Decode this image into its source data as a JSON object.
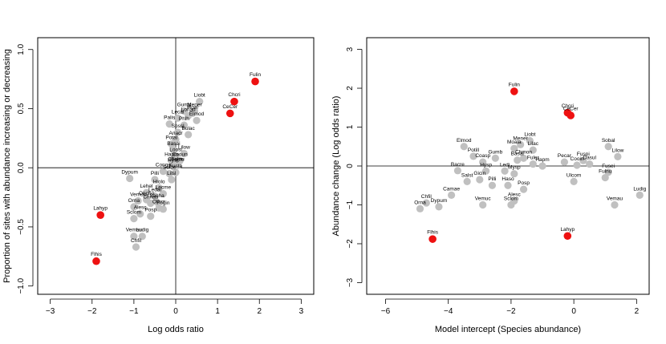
{
  "chart_data": [
    {
      "type": "scatter",
      "xlabel": "Log odds ratio",
      "ylabel": "Proportion of sites with abundance increasing or decreasing",
      "xlim": [
        -3.3,
        3.3
      ],
      "ylim": [
        -1.07,
        1.1
      ],
      "xticks": [
        -3,
        -2,
        -1,
        0,
        1,
        2,
        3
      ],
      "yticks": [
        -1.0,
        -0.5,
        0.0,
        0.5,
        1.0
      ],
      "ytick_labels": [
        "-1.0",
        "-0.5",
        "0.0",
        "0.5",
        "1.0"
      ],
      "reference_lines": {
        "x": 0,
        "y": 0
      },
      "colors": {
        "highlight": "#ee1111",
        "other": "#c0c0c0"
      },
      "highlighted": [
        {
          "label": "Fulin",
          "x": 1.9,
          "y": 0.73
        },
        {
          "label": "Chcri",
          "x": 1.4,
          "y": 0.56
        },
        {
          "label": "CeCer",
          "x": 1.3,
          "y": 0.46
        },
        {
          "label": "Lahyp",
          "x": -1.8,
          "y": -0.4
        },
        {
          "label": "Flhis",
          "x": -1.9,
          "y": -0.79
        }
      ],
      "points": [
        {
          "label": "Liobt",
          "x": 0.57,
          "y": 0.56
        },
        {
          "label": "Gump",
          "x": 0.2,
          "y": 0.48
        },
        {
          "label": "Mener",
          "x": 0.45,
          "y": 0.48
        },
        {
          "label": "Lonad",
          "x": 0.3,
          "y": 0.44
        },
        {
          "label": "Moal",
          "x": 0.4,
          "y": 0.46
        },
        {
          "label": "Elmod",
          "x": 0.5,
          "y": 0.4
        },
        {
          "label": "Lecal",
          "x": 0.05,
          "y": 0.42
        },
        {
          "label": "Palis",
          "x": -0.15,
          "y": 0.37
        },
        {
          "label": "Phlh",
          "x": 0.2,
          "y": 0.36
        },
        {
          "label": "Bulac",
          "x": 0.3,
          "y": 0.28
        },
        {
          "label": "Spssl",
          "x": 0.05,
          "y": 0.3
        },
        {
          "label": "Anacr",
          "x": 0.0,
          "y": 0.24
        },
        {
          "label": "Potal",
          "x": -0.1,
          "y": 0.2
        },
        {
          "label": "Basai",
          "x": -0.05,
          "y": 0.15
        },
        {
          "label": "Lilow",
          "x": 0.2,
          "y": 0.12
        },
        {
          "label": "Loosl",
          "x": 0.0,
          "y": 0.1
        },
        {
          "label": "Hapm",
          "x": -0.1,
          "y": 0.06
        },
        {
          "label": "Cooun",
          "x": 0.1,
          "y": 0.06
        },
        {
          "label": "Hysp",
          "x": -0.05,
          "y": 0.01
        },
        {
          "label": "Coarm",
          "x": 0.0,
          "y": 0.02
        },
        {
          "label": "Fulnu",
          "x": 0.05,
          "y": 0.02
        },
        {
          "label": "Dypum",
          "x": -1.1,
          "y": -0.09
        },
        {
          "label": "Conge",
          "x": -0.3,
          "y": -0.03
        },
        {
          "label": "Solbe",
          "x": -0.15,
          "y": -0.05
        },
        {
          "label": "Fusta",
          "x": 0.0,
          "y": -0.04
        },
        {
          "label": "Pilli",
          "x": -0.5,
          "y": -0.1
        },
        {
          "label": "Lilsl",
          "x": -0.1,
          "y": -0.1
        },
        {
          "label": "Hiolo",
          "x": -0.4,
          "y": -0.17
        },
        {
          "label": "Lehel",
          "x": -0.7,
          "y": -0.21
        },
        {
          "label": "Ledai",
          "x": -0.5,
          "y": -0.24
        },
        {
          "label": "Lecme",
          "x": -0.3,
          "y": -0.22
        },
        {
          "label": "Oncho",
          "x": -0.7,
          "y": -0.27
        },
        {
          "label": "Vemuc",
          "x": -0.9,
          "y": -0.28
        },
        {
          "label": "Chnas",
          "x": -0.6,
          "y": -0.3
        },
        {
          "label": "Sasha",
          "x": -0.45,
          "y": -0.29
        },
        {
          "label": "Orna",
          "x": -1.0,
          "y": -0.33
        },
        {
          "label": "Ollsm",
          "x": -0.4,
          "y": -0.34
        },
        {
          "label": "Fogin",
          "x": -0.3,
          "y": -0.35
        },
        {
          "label": "Alesc",
          "x": -0.85,
          "y": -0.39
        },
        {
          "label": "Posp",
          "x": -0.6,
          "y": -0.41
        },
        {
          "label": "Sclom",
          "x": -1.0,
          "y": -0.43
        },
        {
          "label": "Vemau",
          "x": -1.0,
          "y": -0.58
        },
        {
          "label": "Ludig",
          "x": -0.8,
          "y": -0.58
        },
        {
          "label": "Chfil",
          "x": -0.95,
          "y": -0.67
        }
      ]
    },
    {
      "type": "scatter",
      "xlabel": "Model intercept (Species abundance)",
      "ylabel": "Abundance change (Log odds ratio)",
      "xlim": [
        -6.6,
        2.4
      ],
      "ylim": [
        -3.3,
        3.3
      ],
      "xticks": [
        -6,
        -4,
        -2,
        0,
        2
      ],
      "yticks": [
        -3,
        -2,
        -1,
        0,
        1,
        2,
        3
      ],
      "ytick_labels": [
        "-3",
        "-2",
        "-1",
        "0",
        "1",
        "2",
        "3"
      ],
      "reference_lines": {
        "y": 0
      },
      "colors": {
        "highlight": "#ee1111",
        "other": "#c0c0c0"
      },
      "highlighted": [
        {
          "label": "Fulin",
          "x": -1.9,
          "y": 1.92
        },
        {
          "label": "Chcri",
          "x": -0.2,
          "y": 1.37
        },
        {
          "label": "CeCer",
          "x": -0.1,
          "y": 1.3
        },
        {
          "label": "Lahyp",
          "x": -0.2,
          "y": -1.8
        },
        {
          "label": "Flhis",
          "x": -4.5,
          "y": -1.88
        }
      ],
      "points": [
        {
          "label": "Liobt",
          "x": -1.4,
          "y": 0.65
        },
        {
          "label": "Mener",
          "x": -1.7,
          "y": 0.55
        },
        {
          "label": "Elmod",
          "x": -3.5,
          "y": 0.5
        },
        {
          "label": "Moala",
          "x": -1.9,
          "y": 0.45
        },
        {
          "label": "Lilac",
          "x": -1.3,
          "y": 0.41
        },
        {
          "label": "Sobal",
          "x": 1.1,
          "y": 0.5
        },
        {
          "label": "Lilow",
          "x": 1.4,
          "y": 0.24
        },
        {
          "label": "Potill",
          "x": -3.2,
          "y": 0.25
        },
        {
          "label": "Gumb",
          "x": -2.5,
          "y": 0.2
        },
        {
          "label": "Chmon",
          "x": -1.6,
          "y": 0.2
        },
        {
          "label": "Basai",
          "x": -1.8,
          "y": 0.15
        },
        {
          "label": "Coasp",
          "x": -2.9,
          "y": 0.1
        },
        {
          "label": "Fuspi",
          "x": 0.3,
          "y": 0.14
        },
        {
          "label": "Pecar",
          "x": -0.3,
          "y": 0.1
        },
        {
          "label": "Dasul",
          "x": 0.5,
          "y": 0.05
        },
        {
          "label": "Cooin",
          "x": 0.1,
          "y": 0.02
        },
        {
          "label": "Fuler",
          "x": -1.3,
          "y": 0.05
        },
        {
          "label": "Hapm",
          "x": -1.0,
          "y": 0.0
        },
        {
          "label": "Bacre",
          "x": -3.7,
          "y": -0.12
        },
        {
          "label": "Hysp",
          "x": -2.8,
          "y": -0.13
        },
        {
          "label": "Ledi",
          "x": -2.2,
          "y": -0.13
        },
        {
          "label": "Mysp",
          "x": -1.9,
          "y": -0.2
        },
        {
          "label": "Fusei",
          "x": 1.1,
          "y": -0.16
        },
        {
          "label": "Fulnu",
          "x": 1.0,
          "y": -0.3
        },
        {
          "label": "Ulcom",
          "x": 0.0,
          "y": -0.4
        },
        {
          "label": "Gicin",
          "x": -3.0,
          "y": -0.35
        },
        {
          "label": "Salst",
          "x": -3.4,
          "y": -0.4
        },
        {
          "label": "Pilli",
          "x": -2.6,
          "y": -0.5
        },
        {
          "label": "Haso",
          "x": -2.1,
          "y": -0.5
        },
        {
          "label": "Posp",
          "x": -1.6,
          "y": -0.6
        },
        {
          "label": "Camae",
          "x": -3.9,
          "y": -0.75
        },
        {
          "label": "Chfil",
          "x": -4.7,
          "y": -0.95
        },
        {
          "label": "Dypum",
          "x": -4.3,
          "y": -1.05
        },
        {
          "label": "Orna",
          "x": -4.9,
          "y": -1.1
        },
        {
          "label": "Vemuc",
          "x": -2.9,
          "y": -1.0
        },
        {
          "label": "Sclom",
          "x": -2.0,
          "y": -1.0
        },
        {
          "label": "Alesc",
          "x": -1.9,
          "y": -0.9
        },
        {
          "label": "Vemau",
          "x": 1.3,
          "y": -1.0
        },
        {
          "label": "Ludig",
          "x": 2.1,
          "y": -0.75
        }
      ]
    }
  ]
}
